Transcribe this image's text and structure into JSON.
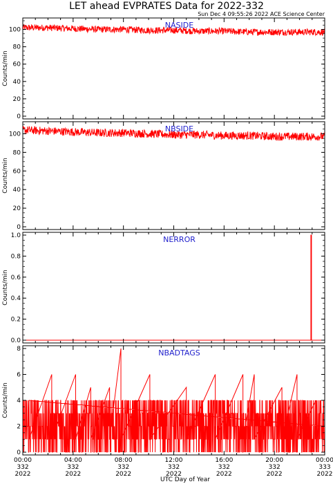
{
  "header": {
    "title": "LET ahead EVPRATES Data for 2022-332",
    "timestamp": "Sun Dec  4 09:55:26 2022 ACE Science Center"
  },
  "x_axis": {
    "label": "UTC Day of Year",
    "ticks": [
      {
        "time": "00:00",
        "doy": "332",
        "year": "2022"
      },
      {
        "time": "04:00",
        "doy": "332",
        "year": "2022"
      },
      {
        "time": "08:00",
        "doy": "332",
        "year": "2022"
      },
      {
        "time": "12:00",
        "doy": "332",
        "year": "2022"
      },
      {
        "time": "16:00",
        "doy": "332",
        "year": "2022"
      },
      {
        "time": "20:00",
        "doy": "332",
        "year": "2022"
      },
      {
        "time": "00:00",
        "doy": "333",
        "year": "2022"
      }
    ]
  },
  "colors": {
    "series": "#ff0000",
    "panel_label": "#2020cc",
    "axes": "#000000"
  },
  "chart_data": [
    {
      "type": "line",
      "title": "NASIDE",
      "ylabel": "Counts/min",
      "ylim": [
        0,
        110
      ],
      "yticks": [
        0,
        20,
        40,
        60,
        80,
        100
      ],
      "x_range_hours": [
        0,
        24
      ],
      "series": [
        {
          "x_hours": [
            0,
            2,
            4,
            6,
            8,
            10,
            12,
            14,
            16,
            18,
            20,
            22,
            24
          ],
          "values": [
            102,
            102,
            101,
            100,
            100,
            99,
            99,
            98,
            98,
            97,
            97,
            97,
            97
          ],
          "range": [
            94,
            108
          ]
        }
      ]
    },
    {
      "type": "line",
      "title": "NBSIDE",
      "ylabel": "Counts/min",
      "ylim": [
        0,
        110
      ],
      "yticks": [
        0,
        20,
        40,
        60,
        80,
        100
      ],
      "x_range_hours": [
        0,
        24
      ],
      "series": [
        {
          "x_hours": [
            0,
            2,
            4,
            6,
            8,
            10,
            12,
            14,
            16,
            18,
            20,
            22,
            24
          ],
          "values": [
            104,
            103,
            102,
            101,
            101,
            100,
            99,
            99,
            98,
            98,
            97,
            97,
            97
          ],
          "range": [
            94,
            110
          ]
        }
      ]
    },
    {
      "type": "line",
      "title": "NERROR",
      "ylabel": "Counts/min",
      "ylim": [
        0,
        1.0
      ],
      "yticks": [
        0.0,
        0.2,
        0.4,
        0.6,
        0.8,
        1.0
      ],
      "x_range_hours": [
        0,
        24
      ],
      "series": [
        {
          "x_hours": [
            0,
            22.9,
            22.9,
            22.95,
            22.95,
            24
          ],
          "values": [
            0,
            0,
            1,
            1,
            0,
            0
          ]
        }
      ]
    },
    {
      "type": "line",
      "title": "NBADTAGS",
      "ylabel": "Counts/min",
      "ylim": [
        0,
        8
      ],
      "yticks": [
        0,
        2,
        4,
        6,
        8
      ],
      "x_range_hours": [
        0,
        24
      ],
      "series": [
        {
          "x_hours": [
            0.5,
            2.3,
            4.2,
            5.4,
            6.9,
            7.8,
            10.1,
            13.0,
            15.3,
            17.5,
            18.4,
            20.6,
            21.8,
            23.3
          ],
          "values": [
            4,
            6,
            6,
            5,
            5,
            8,
            6,
            5,
            6,
            6,
            6,
            5,
            6,
            4
          ],
          "range": [
            0,
            4
          ]
        }
      ]
    }
  ]
}
